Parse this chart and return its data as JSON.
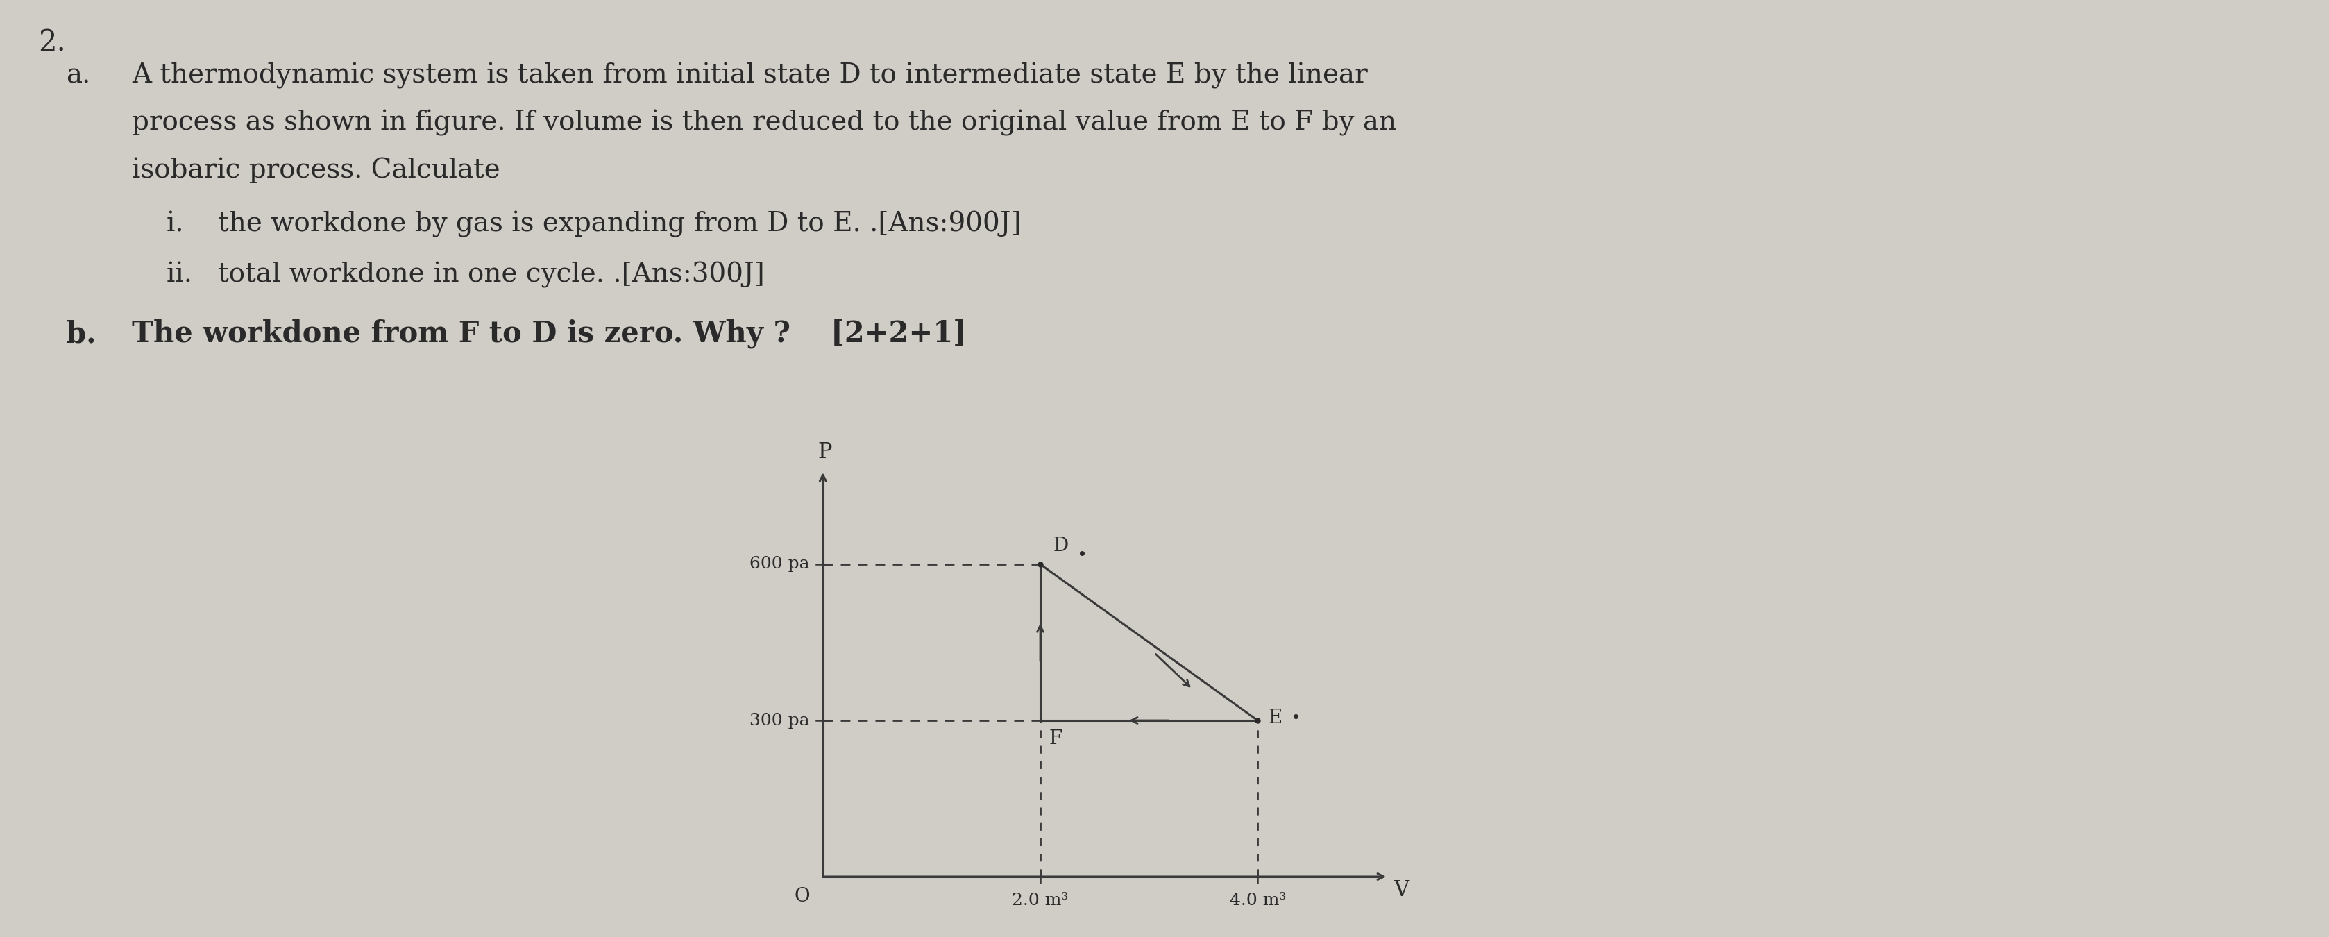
{
  "bg_color": "#d0ccc6",
  "text_color": "#2a2a2a",
  "question_number": "2.",
  "part_a_label": "a.",
  "part_a_text1": "A thermodynamic system is taken from initial state D to intermediate state E by the linear",
  "part_a_text2": "process as shown in figure. If volume is then reduced to the original value from E to F by an",
  "part_a_text3": "isobaric process. Calculate",
  "part_a_i": "i.    the workdone by gas is expanding from D to E. .[Ans:900J]",
  "part_a_ii": "ii.   total workdone in one cycle. .[Ans:300J]",
  "part_b_label": "b.",
  "part_b_text": "The workdone from F to D is zero. Why ?    [2+2+1]",
  "diagram": {
    "D": [
      2.0,
      600
    ],
    "E": [
      4.0,
      300
    ],
    "F": [
      2.0,
      300
    ],
    "line_color": "#3a3a3a",
    "dashed_color": "#3a3a3a",
    "arrow_color": "#3a3a3a"
  }
}
